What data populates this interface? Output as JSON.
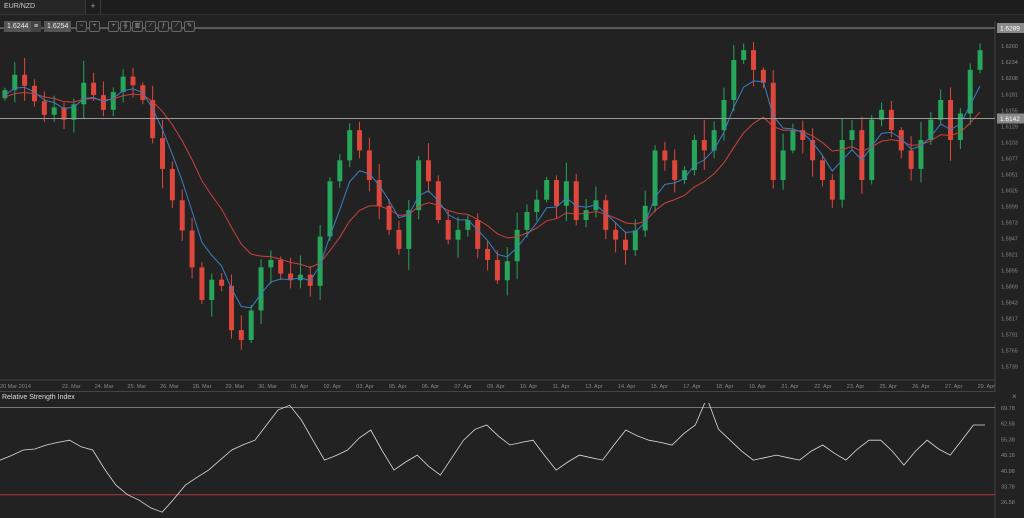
{
  "tab": {
    "label": "EUR/NZD",
    "add_label": "+"
  },
  "toolbar": {
    "bid": "1.6244",
    "sep": "≡",
    "ask": "1.6254",
    "icons": [
      "zoom-out-icon",
      "zoom-in-icon",
      "crosshair-icon",
      "candlestick-icon",
      "bar-chart-icon",
      "line-chart-icon",
      "indicator-icon",
      "draw-tool-icon",
      "pencil-icon"
    ]
  },
  "colors": {
    "bull": "#26a65b",
    "bear": "#e0473c",
    "ema_fast": "#3a7fc2",
    "ema_slow": "#c9433b",
    "line": "#9a9a9a",
    "rsi": "#dddddd",
    "rsi_low": "#b33a3a"
  },
  "chart_data": {
    "type": "candlestick",
    "symbol": "EUR/NZD",
    "ylim": [
      1.5725,
      1.63
    ],
    "y_ticks": [
      "1.6260",
      "1.6234",
      "1.6208",
      "1.6181",
      "1.6155",
      "1.6129",
      "1.6103",
      "1.6077",
      "1.6051",
      "1.6025",
      "1.5999",
      "1.5973",
      "1.5947",
      "1.5921",
      "1.5895",
      "1.5869",
      "1.5843",
      "1.5817",
      "1.5791",
      "1.5765",
      "1.5739"
    ],
    "hlines": [
      {
        "value": 1.6289,
        "label": "1.6289"
      },
      {
        "value": 1.6142,
        "label": "1.6142"
      }
    ],
    "x_ticks": [
      "20 Mar 2014",
      "22. Mar",
      "24. Mar",
      "25. Mar",
      "26. Mar",
      "28. Mar",
      "29. Mar",
      "30. Mar",
      "01. Apr",
      "02. Apr",
      "03. Apr",
      "05. Apr",
      "06. Apr",
      "07. Apr",
      "09. Apr",
      "10. Apr",
      "11. Apr",
      "13. Apr",
      "14. Apr",
      "15. Apr",
      "17. Apr",
      "18. Apr",
      "19. Apr",
      "21. Apr",
      "22. Apr",
      "23. Apr",
      "25. Apr",
      "26. Apr",
      "27. Apr",
      "29. Apr"
    ],
    "closes": [
      1.6188,
      1.6213,
      1.6195,
      1.617,
      1.6148,
      1.616,
      1.614,
      1.6165,
      1.62,
      1.618,
      1.6156,
      1.6185,
      1.621,
      1.6196,
      1.6172,
      1.611,
      1.606,
      1.6009,
      1.596,
      1.59,
      1.5847,
      1.588,
      1.587,
      1.5798,
      1.5782,
      1.583,
      1.59,
      1.5912,
      1.589,
      1.5879,
      1.5888,
      1.587,
      1.595,
      1.604,
      1.6074,
      1.6123,
      1.609,
      1.6042,
      1.6,
      1.5961,
      1.593,
      1.5993,
      1.6074,
      1.604,
      1.5977,
      1.5945,
      1.5961,
      1.5977,
      1.593,
      1.5912,
      1.5879,
      1.591,
      1.5961,
      1.599,
      1.601,
      1.6042,
      1.6,
      1.604,
      1.5977,
      1.5993,
      1.6009,
      1.5961,
      1.5945,
      1.5928,
      1.596,
      1.6,
      1.609,
      1.6074,
      1.6042,
      1.6058,
      1.6107,
      1.609,
      1.6123,
      1.6172,
      1.6237,
      1.6253,
      1.6221,
      1.62,
      1.6042,
      1.609,
      1.6123,
      1.6107,
      1.6074,
      1.6042,
      1.601,
      1.6107,
      1.6123,
      1.6042,
      1.614,
      1.6156,
      1.6123,
      1.609,
      1.606,
      1.6107,
      1.614,
      1.6172,
      1.6107,
      1.615,
      1.6221,
      1.6253
    ],
    "first_open": 1.6175,
    "indicator": {
      "title": "Relative Strength Index",
      "ylim": [
        20,
        76
      ],
      "y_ticks": [
        "69.78",
        "62.58",
        "55.38",
        "48.18",
        "40.98",
        "33.78",
        "26.58"
      ],
      "levels": [
        70,
        30
      ],
      "values": [
        45.9,
        48,
        50.5,
        51,
        52.8,
        54,
        55,
        52,
        50.5,
        42,
        34.4,
        30,
        27.5,
        24,
        22,
        28,
        34.4,
        38,
        41.3,
        46,
        50.5,
        53,
        55,
        62,
        68.9,
        71,
        64.3,
        55,
        45.9,
        48,
        50.5,
        56,
        59.7,
        50,
        41.3,
        45,
        48.2,
        43,
        39,
        47,
        55,
        60,
        62,
        57,
        52.8,
        54,
        55,
        48,
        41.3,
        45,
        48.2,
        47,
        45.9,
        53,
        59.7,
        57,
        55,
        54,
        52.8,
        58,
        62,
        74.4,
        60,
        55,
        50,
        45.9,
        47,
        48.2,
        47,
        45.9,
        50,
        52.8,
        49,
        45.9,
        51,
        55,
        55,
        50,
        43.6,
        50,
        55,
        51,
        48.2,
        55,
        62,
        62
      ]
    }
  },
  "rsi_close_label": "×"
}
